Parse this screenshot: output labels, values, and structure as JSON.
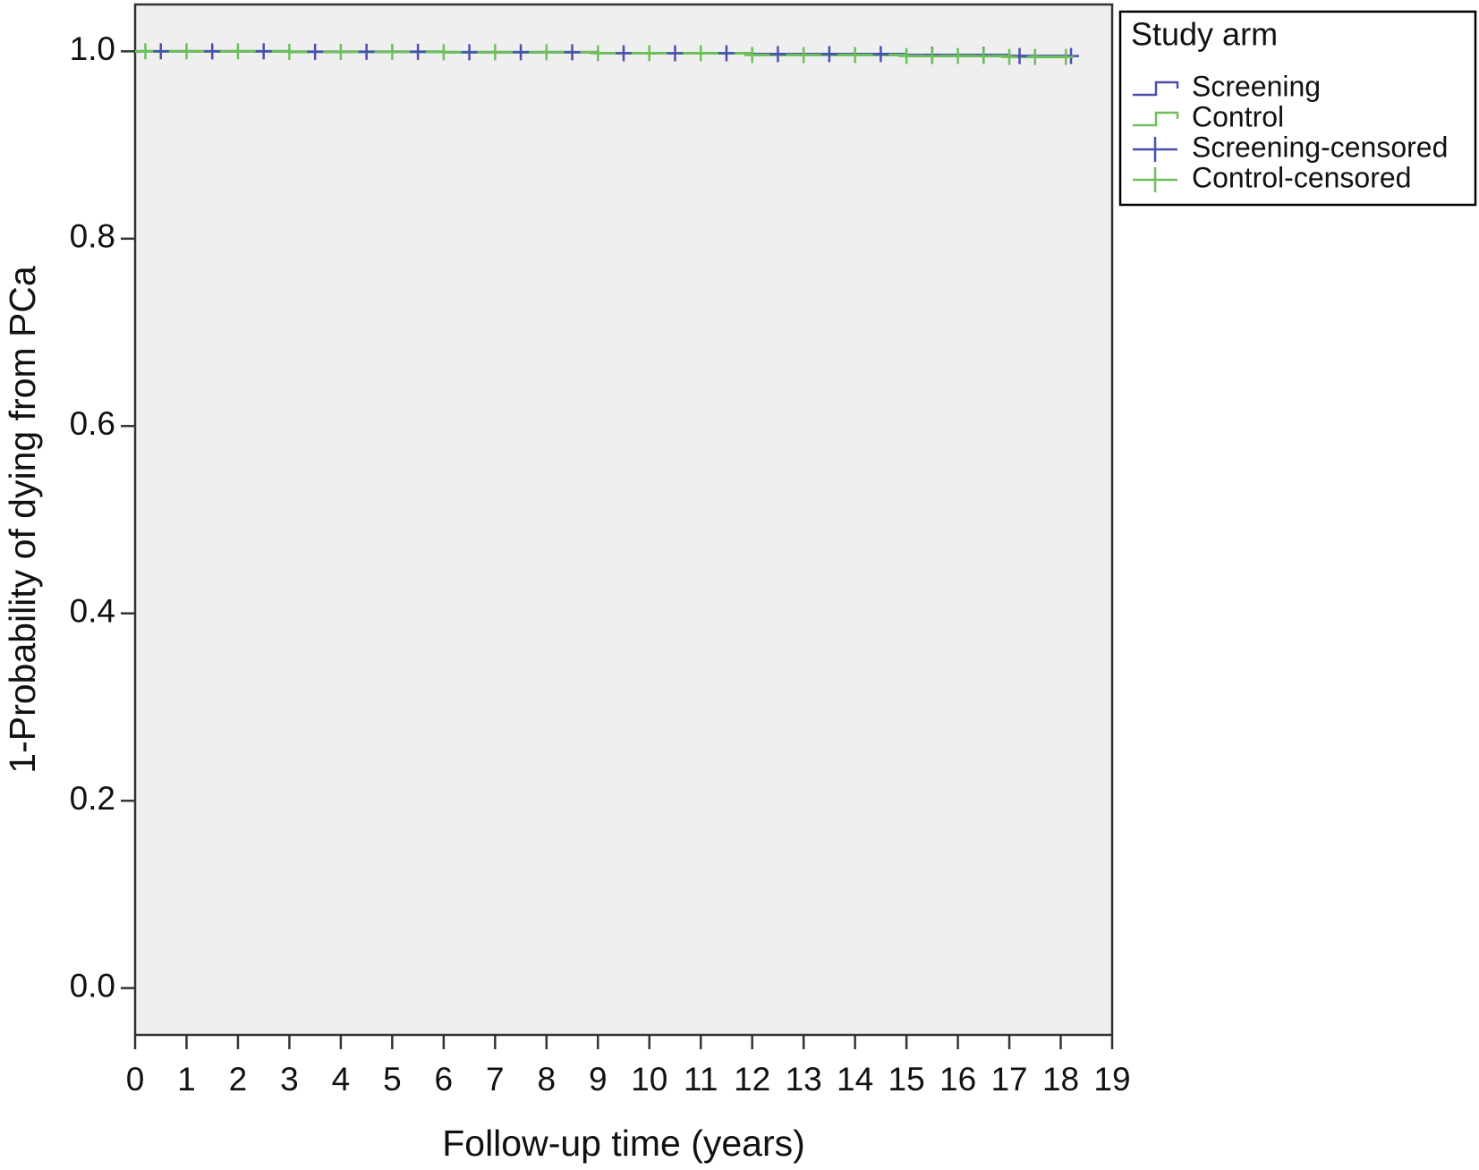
{
  "chart_data": {
    "type": "km",
    "x_label": "Follow-up time (years)",
    "y_label": "1-Probability of dying from PCa",
    "xlim": [
      0,
      19
    ],
    "ylim": [
      -0.05,
      1.05
    ],
    "xticks": [
      0,
      1,
      2,
      3,
      4,
      5,
      6,
      7,
      8,
      9,
      10,
      11,
      12,
      13,
      14,
      15,
      16,
      17,
      18,
      19
    ],
    "yticks": [
      {
        "value": 0,
        "label": "0.0"
      },
      0.2,
      0.4,
      0.6,
      0.8,
      {
        "value": 1,
        "label": "1.0"
      }
    ],
    "background": "#efefef",
    "legend_title": "Study arm",
    "legend": "outside-top-right",
    "series": [
      {
        "name": "Screening",
        "kind": "step",
        "color": "#4a4fb0",
        "x": [
          0,
          3,
          6,
          9,
          12,
          15,
          17,
          18.2
        ],
        "values": [
          1,
          0.9995,
          0.999,
          0.998,
          0.997,
          0.996,
          0.995,
          0.995
        ]
      },
      {
        "name": "Control",
        "kind": "step",
        "color": "#6cc05a",
        "x": [
          0,
          3,
          6,
          9,
          12,
          15,
          17,
          18.1
        ],
        "values": [
          1,
          0.9995,
          0.999,
          0.998,
          0.996,
          0.995,
          0.994,
          0.994
        ]
      },
      {
        "name": "Screening-censored",
        "kind": "censor",
        "color": "#4a4fb0",
        "x": [
          0.5,
          1.5,
          2.5,
          3.5,
          4.5,
          5.5,
          6.5,
          7.5,
          8.5,
          9.5,
          10.5,
          11.5,
          12.5,
          13.5,
          14.5,
          15.5,
          16.5,
          17.2,
          18.2
        ],
        "values": [
          1,
          1,
          1,
          0.9995,
          0.9995,
          0.9995,
          0.999,
          0.999,
          0.999,
          0.998,
          0.998,
          0.998,
          0.997,
          0.997,
          0.997,
          0.996,
          0.996,
          0.995,
          0.995
        ]
      },
      {
        "name": "Control-censored",
        "kind": "censor",
        "color": "#6cc05a",
        "x": [
          0.2,
          1,
          2,
          3,
          4,
          5,
          6,
          7,
          8,
          9,
          10,
          11,
          12,
          13,
          14,
          15,
          15.5,
          16,
          16.5,
          17,
          17.5,
          18.1
        ],
        "values": [
          1,
          1,
          1,
          0.9995,
          0.9995,
          0.9995,
          0.999,
          0.999,
          0.999,
          0.998,
          0.998,
          0.998,
          0.996,
          0.996,
          0.996,
          0.995,
          0.995,
          0.995,
          0.995,
          0.994,
          0.994,
          0.994
        ]
      }
    ]
  }
}
